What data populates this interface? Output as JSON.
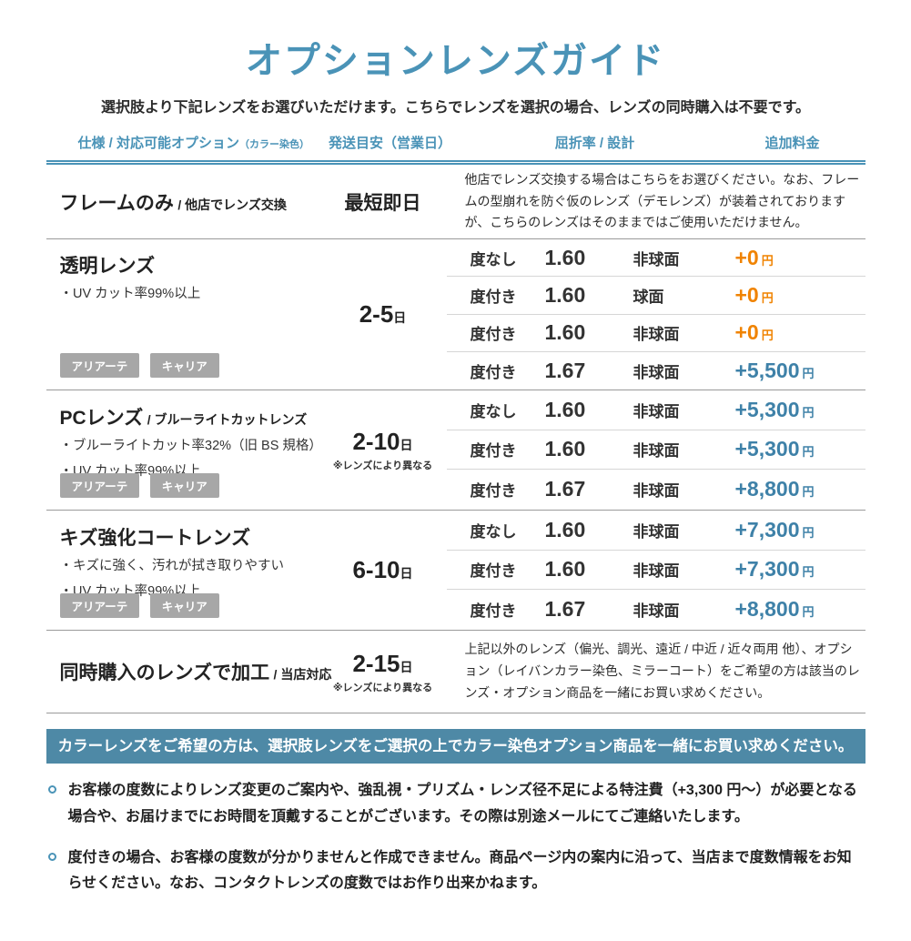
{
  "page": {
    "title": "オプションレンズガイド",
    "subtitle": "選択肢より下記レンズをお選びいただけます。こちらでレンズを選択の場合、レンズの同時購入は不要です。"
  },
  "table": {
    "headers": {
      "spec": "仕様 / 対応可能オプション",
      "spec_small": "（カラー染色）",
      "shipping": "発送目安（営業日）",
      "index_design": "屈折率 / 設計",
      "price": "追加料金"
    },
    "rows": [
      {
        "title": "フレームのみ",
        "title_suffix": "/ 他店でレンズ交換",
        "shipping_main": "最短即日",
        "note": "他店でレンズ交換する場合はこちらをお選びください。なお、フレームの型崩れを防ぐ仮のレンズ（デモレンズ）が装着されておりますが、こちらのレンズはそのままではご使用いただけません。"
      },
      {
        "title": "透明レンズ",
        "bullets": [
          "・UV カット率99%以上"
        ],
        "shipping_main": "2-5",
        "shipping_unit": "日",
        "badges": [
          "アリアーテ",
          "キャリア"
        ],
        "options": [
          {
            "power": "度なし",
            "index": "1.60",
            "design": "非球面",
            "price": "+0",
            "price_unit": "円",
            "price_color": "orange"
          },
          {
            "power": "度付き",
            "index": "1.60",
            "design": "球面",
            "price": "+0",
            "price_unit": "円",
            "price_color": "orange"
          },
          {
            "power": "度付き",
            "index": "1.60",
            "design": "非球面",
            "price": "+0",
            "price_unit": "円",
            "price_color": "orange"
          },
          {
            "power": "度付き",
            "index": "1.67",
            "design": "非球面",
            "price": "+5,500",
            "price_unit": "円",
            "price_color": "blue"
          }
        ]
      },
      {
        "title": "PCレンズ",
        "title_suffix": "/ ブルーライトカットレンズ",
        "bullets": [
          "・ブルーライトカット率32%（旧 BS 規格）",
          "・UV カット率99%以上"
        ],
        "shipping_main": "2-10",
        "shipping_unit": "日",
        "shipping_note": "※レンズにより異なる",
        "badges": [
          "アリアーテ",
          "キャリア"
        ],
        "options": [
          {
            "power": "度なし",
            "index": "1.60",
            "design": "非球面",
            "price": "+5,300",
            "price_unit": "円",
            "price_color": "blue"
          },
          {
            "power": "度付き",
            "index": "1.60",
            "design": "非球面",
            "price": "+5,300",
            "price_unit": "円",
            "price_color": "blue"
          },
          {
            "power": "度付き",
            "index": "1.67",
            "design": "非球面",
            "price": "+8,800",
            "price_unit": "円",
            "price_color": "blue"
          }
        ]
      },
      {
        "title": "キズ強化コートレンズ",
        "bullets": [
          "・キズに強く、汚れが拭き取りやすい",
          "・UV カット率99%以上"
        ],
        "shipping_main": "6-10",
        "shipping_unit": "日",
        "badges": [
          "アリアーテ",
          "キャリア"
        ],
        "options": [
          {
            "power": "度なし",
            "index": "1.60",
            "design": "非球面",
            "price": "+7,300",
            "price_unit": "円",
            "price_color": "blue"
          },
          {
            "power": "度付き",
            "index": "1.60",
            "design": "非球面",
            "price": "+7,300",
            "price_unit": "円",
            "price_color": "blue"
          },
          {
            "power": "度付き",
            "index": "1.67",
            "design": "非球面",
            "price": "+8,800",
            "price_unit": "円",
            "price_color": "blue"
          }
        ]
      },
      {
        "title": "同時購入のレンズで加工",
        "title_suffix": "/ 当店対応",
        "shipping_main": "2-15",
        "shipping_unit": "日",
        "shipping_note": "※レンズにより異なる",
        "note": "上記以外のレンズ（偏光、調光、遠近 / 中近 / 近々両用 他）、オプション（レイバンカラー染色、ミラーコート）をご希望の方は該当のレンズ・オプション商品を一緒にお買い求めください。"
      }
    ]
  },
  "banner": {
    "text": "カラーレンズをご希望の方は、選択肢レンズをご選択の上でカラー染色オプション商品を一緒にお買い求めください。"
  },
  "notes": [
    "お客様の度数によりレンズ変更のご案内や、強乱視・プリズム・レンズ径不足による特注費（+3,300 円～）が必要となる場合や、お届けまでにお時間を頂戴することがございます。その際は別途メールにてご連絡いたします。",
    "度付きの場合、お客様の度数が分かりませんと作成できません。商品ページ内の案内に沿って、当店まで度数情報をお知らせください。なお、コンタクトレンズの度数ではお作り出来かねます。"
  ],
  "colors": {
    "accent_blue": "#4a93b7",
    "price_blue": "#3e81a8",
    "price_orange": "#f08300",
    "badge_gray": "#a7a7a7",
    "banner_bg": "#4e89a6",
    "text_dark": "#2b2b2b"
  }
}
